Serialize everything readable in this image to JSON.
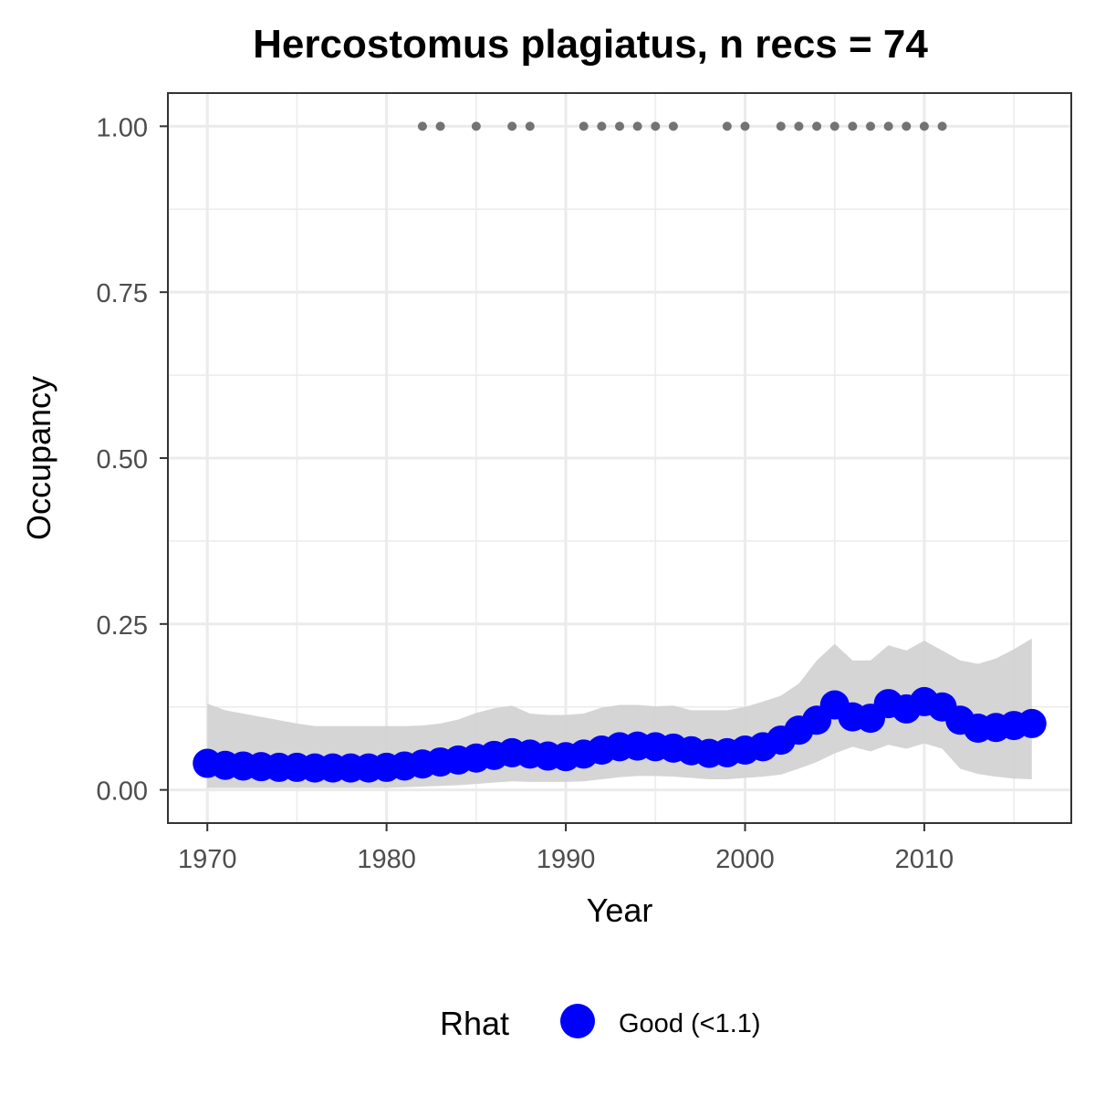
{
  "chart_data": {
    "type": "line",
    "title": "Hercostomus plagiatus, n recs = 74",
    "xlabel": "Year",
    "ylabel": "Occupancy",
    "xlim": [
      1967.8,
      2018.2
    ],
    "ylim": [
      -0.05,
      1.05
    ],
    "x_ticks": [
      1970,
      1980,
      1990,
      2000,
      2010
    ],
    "x_tick_labels": [
      "1970",
      "1980",
      "1990",
      "2000",
      "2010"
    ],
    "y_ticks": [
      0,
      0.25,
      0.5,
      0.75,
      1
    ],
    "y_tick_labels": [
      "0.00",
      "0.25",
      "0.50",
      "0.75",
      "1.00"
    ],
    "grid": true,
    "legend_position": "bottom",
    "colors": {
      "series": "#0000ff",
      "ribbon": "#d3d3d3",
      "records": "#737373",
      "grid": "#ebebeb",
      "border": "#333333"
    },
    "x": [
      1970,
      1971,
      1972,
      1973,
      1974,
      1975,
      1976,
      1977,
      1978,
      1979,
      1980,
      1981,
      1982,
      1983,
      1984,
      1985,
      1986,
      1987,
      1988,
      1989,
      1990,
      1991,
      1992,
      1993,
      1994,
      1995,
      1996,
      1997,
      1998,
      1999,
      2000,
      2001,
      2002,
      2003,
      2004,
      2005,
      2006,
      2007,
      2008,
      2009,
      2010,
      2011,
      2012,
      2013,
      2014,
      2015,
      2016
    ],
    "series": [
      {
        "values": [
          0.04,
          0.037,
          0.036,
          0.035,
          0.034,
          0.034,
          0.033,
          0.033,
          0.033,
          0.033,
          0.034,
          0.036,
          0.039,
          0.042,
          0.045,
          0.048,
          0.052,
          0.056,
          0.054,
          0.051,
          0.05,
          0.054,
          0.06,
          0.065,
          0.066,
          0.065,
          0.063,
          0.059,
          0.055,
          0.056,
          0.06,
          0.065,
          0.075,
          0.09,
          0.105,
          0.128,
          0.11,
          0.108,
          0.13,
          0.122,
          0.133,
          0.125,
          0.105,
          0.093,
          0.094,
          0.097,
          0.1
        ],
        "lower": [
          0.003,
          0.003,
          0.003,
          0.003,
          0.003,
          0.003,
          0.003,
          0.003,
          0.003,
          0.003,
          0.003,
          0.004,
          0.005,
          0.006,
          0.007,
          0.009,
          0.011,
          0.013,
          0.012,
          0.012,
          0.012,
          0.013,
          0.016,
          0.019,
          0.021,
          0.021,
          0.02,
          0.018,
          0.016,
          0.016,
          0.018,
          0.02,
          0.023,
          0.032,
          0.042,
          0.055,
          0.065,
          0.058,
          0.068,
          0.062,
          0.07,
          0.062,
          0.032,
          0.024,
          0.02,
          0.017,
          0.016
        ],
        "upper": [
          0.13,
          0.12,
          0.115,
          0.11,
          0.105,
          0.1,
          0.096,
          0.096,
          0.096,
          0.096,
          0.096,
          0.096,
          0.097,
          0.1,
          0.106,
          0.116,
          0.123,
          0.127,
          0.115,
          0.113,
          0.113,
          0.115,
          0.124,
          0.128,
          0.128,
          0.126,
          0.127,
          0.12,
          0.12,
          0.12,
          0.125,
          0.133,
          0.142,
          0.16,
          0.195,
          0.22,
          0.195,
          0.195,
          0.218,
          0.21,
          0.225,
          0.21,
          0.195,
          0.19,
          0.198,
          0.212,
          0.228
        ]
      }
    ],
    "records": {
      "y": 1,
      "x": [
        1982,
        1983,
        1985,
        1987,
        1988,
        1991,
        1992,
        1993,
        1994,
        1995,
        1996,
        1999,
        2000,
        2002,
        2003,
        2004,
        2005,
        2006,
        2007,
        2008,
        2009,
        2010,
        2011
      ]
    },
    "legend": {
      "title": "Rhat",
      "label": "Good (<1.1)"
    }
  }
}
